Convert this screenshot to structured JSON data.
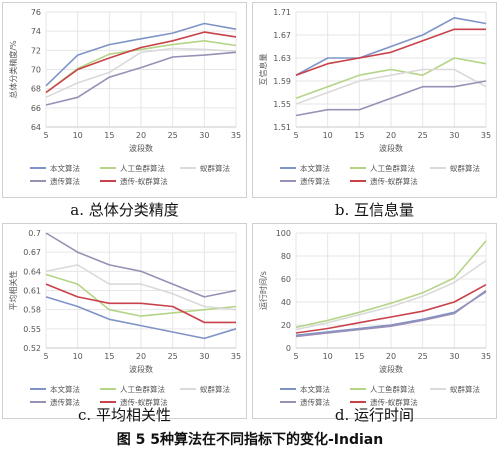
{
  "figure_title": "图 5  5种算法在不同指标下的变化-Indian",
  "chart_data": [
    {
      "type": "line",
      "caption": "a. 总体分类精度",
      "ylabel": "总体分类精度/%",
      "xlabel": "波段数",
      "x": [
        5,
        10,
        15,
        20,
        25,
        30,
        35
      ],
      "ylim": [
        64,
        76
      ],
      "yticks": [
        64,
        66,
        68,
        70,
        72,
        74,
        76
      ],
      "grid": true,
      "legend": "bottom",
      "series": [
        {
          "name": "本文算法",
          "color": "#7f93c7",
          "values": [
            68.3,
            71.5,
            72.6,
            73.2,
            73.8,
            74.8,
            74.2
          ]
        },
        {
          "name": "人工鱼群算法",
          "color": "#b5d486",
          "values": [
            67.6,
            70.1,
            71.6,
            72.1,
            72.6,
            73.0,
            72.5
          ]
        },
        {
          "name": "蚁群算法",
          "color": "#dadada",
          "values": [
            67.1,
            68.6,
            69.7,
            71.8,
            72.2,
            72.1,
            71.9
          ]
        },
        {
          "name": "遗传算法",
          "color": "#9a8fb5",
          "values": [
            66.3,
            67.1,
            69.2,
            70.2,
            71.3,
            71.5,
            71.8
          ]
        },
        {
          "name": "遗传-蚁群算法",
          "color": "#c8424a",
          "values": [
            67.6,
            70.0,
            71.2,
            72.3,
            73.0,
            73.9,
            73.4
          ]
        }
      ]
    },
    {
      "type": "line",
      "caption": "b. 互信息量",
      "ylabel": "互信息量",
      "xlabel": "波段数",
      "x": [
        5,
        10,
        15,
        20,
        25,
        30,
        35
      ],
      "ylim": [
        1.51,
        1.71
      ],
      "yticks": [
        1.51,
        1.55,
        1.59,
        1.63,
        1.67,
        1.71
      ],
      "grid": true,
      "legend": "bottom",
      "series": [
        {
          "name": "本文算法",
          "color": "#7f93c7",
          "values": [
            1.6,
            1.63,
            1.63,
            1.65,
            1.67,
            1.7,
            1.69
          ]
        },
        {
          "name": "人工鱼群算法",
          "color": "#b5d486",
          "values": [
            1.56,
            1.58,
            1.6,
            1.61,
            1.6,
            1.63,
            1.62
          ]
        },
        {
          "name": "蚁群算法",
          "color": "#dadada",
          "values": [
            1.55,
            1.57,
            1.59,
            1.6,
            1.61,
            1.61,
            1.58
          ]
        },
        {
          "name": "遗传算法",
          "color": "#9a8fb5",
          "values": [
            1.53,
            1.54,
            1.54,
            1.56,
            1.58,
            1.58,
            1.59
          ]
        },
        {
          "name": "遗传-蚁群算法",
          "color": "#c8424a",
          "values": [
            1.6,
            1.62,
            1.63,
            1.64,
            1.66,
            1.68,
            1.68
          ]
        }
      ]
    },
    {
      "type": "line",
      "caption": "c. 平均相关性",
      "ylabel": "平均相关性",
      "xlabel": "波段数",
      "x": [
        5,
        10,
        15,
        20,
        25,
        30,
        35
      ],
      "ylim": [
        0.52,
        0.7
      ],
      "yticks": [
        0.52,
        0.55,
        0.58,
        0.61,
        0.64,
        0.67,
        0.7
      ],
      "grid": true,
      "legend": "bottom",
      "series": [
        {
          "name": "本文算法",
          "color": "#7f93c7",
          "values": [
            0.6,
            0.585,
            0.565,
            0.555,
            0.545,
            0.535,
            0.55
          ]
        },
        {
          "name": "人工鱼群算法",
          "color": "#b5d486",
          "values": [
            0.635,
            0.62,
            0.58,
            0.57,
            0.575,
            0.58,
            0.585
          ]
        },
        {
          "name": "蚁群算法",
          "color": "#dadada",
          "values": [
            0.64,
            0.65,
            0.62,
            0.62,
            0.605,
            0.585,
            0.58
          ]
        },
        {
          "name": "遗传算法",
          "color": "#9a8fb5",
          "values": [
            0.7,
            0.67,
            0.65,
            0.64,
            0.62,
            0.6,
            0.61
          ]
        },
        {
          "name": "遗传-蚁群算法",
          "color": "#c8424a",
          "values": [
            0.62,
            0.6,
            0.59,
            0.59,
            0.585,
            0.56,
            0.56
          ]
        }
      ]
    },
    {
      "type": "line",
      "caption": "d. 运行时间",
      "ylabel": "运行时间/s",
      "xlabel": "波段数",
      "x": [
        5,
        10,
        15,
        20,
        25,
        30,
        35
      ],
      "ylim": [
        0,
        100
      ],
      "yticks": [
        0,
        20,
        40,
        60,
        80,
        100
      ],
      "grid": true,
      "legend": "bottom",
      "series": [
        {
          "name": "本文算法",
          "color": "#7f93c7",
          "values": [
            11,
            14,
            17,
            20,
            25,
            31,
            49
          ]
        },
        {
          "name": "人工鱼群算法",
          "color": "#b5d486",
          "values": [
            18,
            24,
            31,
            39,
            48,
            61,
            93
          ]
        },
        {
          "name": "蚁群算法",
          "color": "#dadada",
          "values": [
            16,
            22,
            29,
            36,
            45,
            57,
            76
          ]
        },
        {
          "name": "遗传算法",
          "color": "#9a8fb5",
          "values": [
            10,
            13,
            16,
            19,
            24,
            30,
            50
          ]
        },
        {
          "name": "遗传-蚁群算法",
          "color": "#c8424a",
          "values": [
            13,
            17,
            22,
            27,
            32,
            40,
            55
          ]
        }
      ]
    }
  ]
}
